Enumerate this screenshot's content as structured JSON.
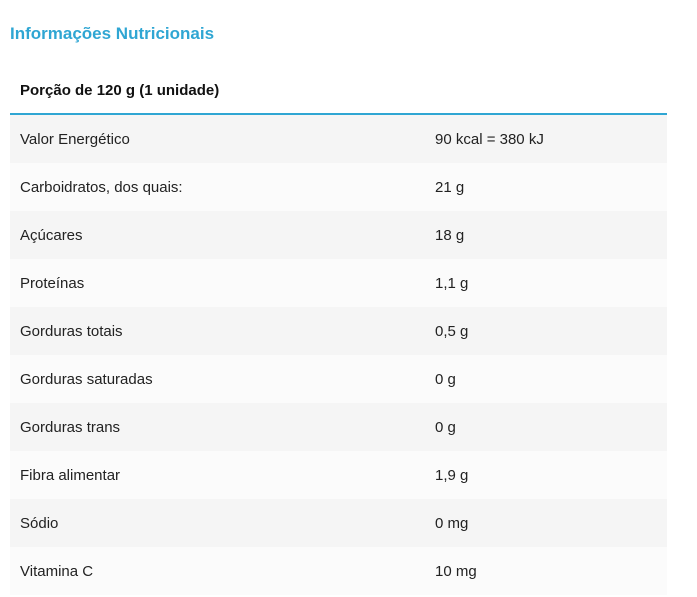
{
  "title": "Informações Nutricionais",
  "table": {
    "header": "Porção de 120 g (1 unidade)",
    "rows": [
      {
        "name": "Valor Energético",
        "value": "90 kcal = 380 kJ"
      },
      {
        "name": "Carboidratos, dos quais:",
        "value": "21 g"
      },
      {
        "name": "Açúcares",
        "value": "18 g"
      },
      {
        "name": "Proteínas",
        "value": "1,1 g"
      },
      {
        "name": "Gorduras totais",
        "value": "0,5 g"
      },
      {
        "name": "Gorduras saturadas",
        "value": "0 g"
      },
      {
        "name": "Gorduras trans",
        "value": "0 g"
      },
      {
        "name": "Fibra alimentar",
        "value": "1,9 g"
      },
      {
        "name": "Sódio",
        "value": "0 mg"
      },
      {
        "name": "Vitamina C",
        "value": "10 mg"
      }
    ]
  },
  "colors": {
    "accent": "#2fa6d3",
    "row_odd": "#f5f5f5",
    "row_even": "#fbfbfb"
  }
}
